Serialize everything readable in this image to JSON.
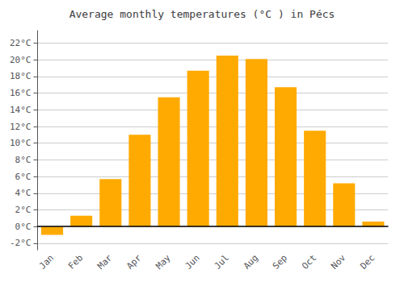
{
  "chart_data": {
    "type": "bar",
    "title": "Average monthly temperatures (°C ) in Pécs",
    "categories": [
      "Jan",
      "Feb",
      "Mar",
      "Apr",
      "May",
      "Jun",
      "Jul",
      "Aug",
      "Sep",
      "Oct",
      "Nov",
      "Dec"
    ],
    "values": [
      -1.0,
      1.3,
      5.7,
      11.0,
      15.5,
      18.7,
      20.5,
      20.1,
      16.7,
      11.5,
      5.2,
      0.6
    ],
    "color": "#FFAA00",
    "ylim": [
      -2.8,
      23.5
    ],
    "yticks": [
      {
        "value": -2,
        "label": "-2°C"
      },
      {
        "value": 0,
        "label": "0°C"
      },
      {
        "value": 2,
        "label": "2°C"
      },
      {
        "value": 4,
        "label": "4°C"
      },
      {
        "value": 6,
        "label": "6°C"
      },
      {
        "value": 8,
        "label": "8°C"
      },
      {
        "value": 10,
        "label": "10°C"
      },
      {
        "value": 12,
        "label": "12°C"
      },
      {
        "value": 14,
        "label": "14°C"
      },
      {
        "value": 16,
        "label": "16°C"
      },
      {
        "value": 18,
        "label": "18°C"
      },
      {
        "value": 20,
        "label": "20°C"
      },
      {
        "value": 22,
        "label": "22°C"
      }
    ],
    "grid": true
  }
}
